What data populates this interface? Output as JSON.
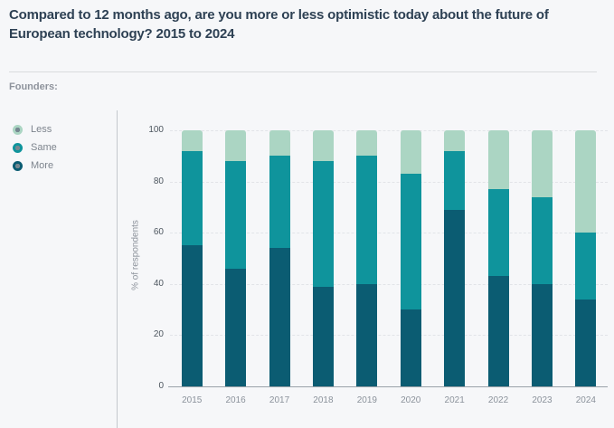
{
  "title": "Compared to 12 months ago, are you more or less optimistic today about the future of European technology? 2015 to 2024",
  "group_label": "Founders:",
  "legend": {
    "position": "left",
    "items": [
      {
        "label": "Less",
        "color": "#abd5c3"
      },
      {
        "label": "Same",
        "color": "#0f949c"
      },
      {
        "label": "More",
        "color": "#0b5c72"
      }
    ]
  },
  "chart_data": {
    "type": "bar",
    "stacked": true,
    "title": "Compared to 12 months ago, are you more or less optimistic today about the future of European technology? 2015 to 2024",
    "categories": [
      "2015",
      "2016",
      "2017",
      "2018",
      "2019",
      "2020",
      "2021",
      "2022",
      "2023",
      "2024"
    ],
    "series": [
      {
        "name": "More",
        "color": "#0b5c72",
        "values": [
          55,
          46,
          54,
          39,
          40,
          30,
          69,
          43,
          40,
          34
        ]
      },
      {
        "name": "Same",
        "color": "#0f949c",
        "values": [
          37,
          42,
          36,
          49,
          50,
          53,
          23,
          34,
          34,
          26
        ]
      },
      {
        "name": "Less",
        "color": "#abd5c3",
        "values": [
          8,
          12,
          10,
          12,
          10,
          17,
          8,
          23,
          26,
          40
        ]
      }
    ],
    "xlabel": "",
    "ylabel": "% of respondents",
    "ylim": [
      0,
      100
    ],
    "yticks": [
      0,
      20,
      40,
      60,
      80,
      100
    ],
    "grid": "dashed horizontal",
    "legend_position": "left"
  },
  "colors": {
    "background": "#f6f7f9",
    "title_text": "#2e4154",
    "muted_text": "#8e939c",
    "axis_line": "#9ba2a9",
    "gridline": "#e2e4e8",
    "divider": "#d9dbde"
  }
}
